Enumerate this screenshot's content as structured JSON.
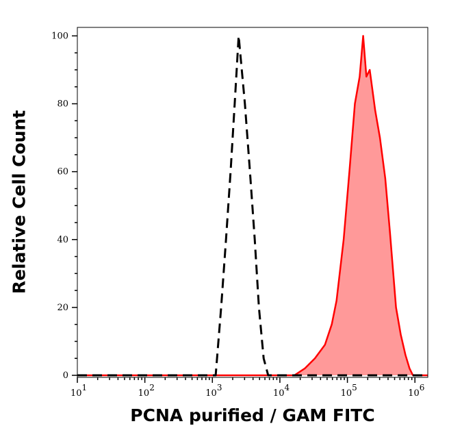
{
  "chart_data": {
    "type": "area",
    "title": "",
    "xlabel": "PCNA purified / GAM FITC",
    "ylabel": "Relative Cell Count",
    "x_scale": "log",
    "xlim": [
      10,
      1550000
    ],
    "ylim": [
      -0.6,
      102.5
    ],
    "x_ticks": [
      {
        "value": 10,
        "base": "10",
        "exp": "1"
      },
      {
        "value": 100,
        "base": "10",
        "exp": "2"
      },
      {
        "value": 1000,
        "base": "10",
        "exp": "3"
      },
      {
        "value": 10000,
        "base": "10",
        "exp": "4"
      },
      {
        "value": 100000,
        "base": "10",
        "exp": "5"
      },
      {
        "value": 1000000,
        "base": "10",
        "exp": "6"
      }
    ],
    "y_ticks": [
      0,
      20,
      40,
      60,
      80,
      100
    ],
    "grid": false,
    "series": [
      {
        "style": "dashed",
        "color": "#000000",
        "filled": false,
        "points": [
          [
            10,
            0
          ],
          [
            1120,
            0
          ],
          [
            1350,
            20
          ],
          [
            1590,
            40
          ],
          [
            1860,
            60
          ],
          [
            2140,
            80
          ],
          [
            2450,
            100
          ],
          [
            3030,
            80
          ],
          [
            3600,
            60
          ],
          [
            4240,
            40
          ],
          [
            4890,
            20
          ],
          [
            5740,
            5
          ],
          [
            6700,
            0
          ],
          [
            1550000,
            0
          ]
        ]
      },
      {
        "style": "solid",
        "color": "#ff0000",
        "fill": "#ff9999",
        "filled": true,
        "points": [
          [
            10,
            0
          ],
          [
            16400,
            0
          ],
          [
            23300,
            2
          ],
          [
            33000,
            5
          ],
          [
            46500,
            9
          ],
          [
            58600,
            15
          ],
          [
            69000,
            22
          ],
          [
            88000,
            40
          ],
          [
            107000,
            60
          ],
          [
            129000,
            80
          ],
          [
            152000,
            88
          ],
          [
            171000,
            100
          ],
          [
            191000,
            88
          ],
          [
            214000,
            90
          ],
          [
            258000,
            78
          ],
          [
            303000,
            70
          ],
          [
            364000,
            58
          ],
          [
            427000,
            42
          ],
          [
            525000,
            20
          ],
          [
            617000,
            12
          ],
          [
            725000,
            6
          ],
          [
            833000,
            2
          ],
          [
            933000,
            0
          ],
          [
            1550000,
            0
          ]
        ]
      }
    ]
  }
}
